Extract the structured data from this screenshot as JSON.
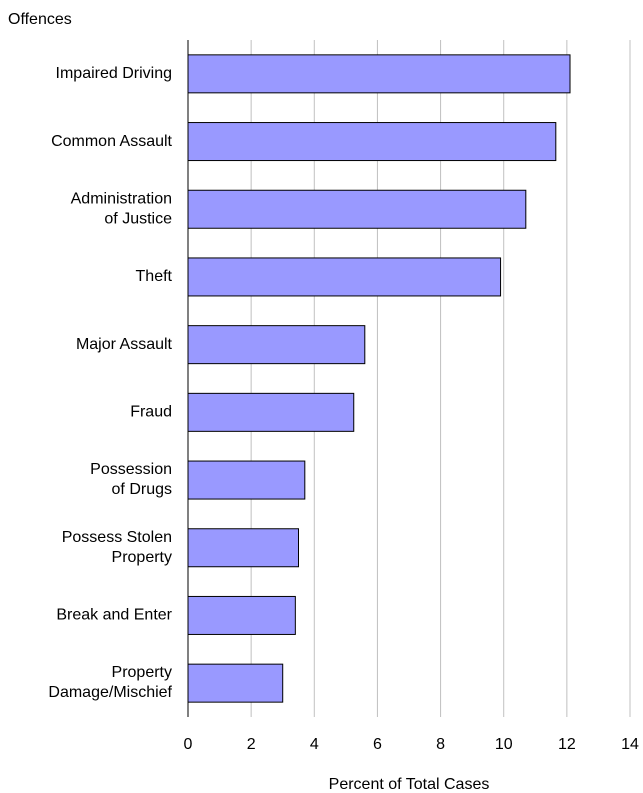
{
  "chart_data": {
    "type": "bar",
    "orientation": "horizontal",
    "y_axis_title": "Offences",
    "x_axis_title": "Percent of Total Cases",
    "categories": [
      "Impaired Driving",
      "Common Assault",
      "Administration\nof Justice",
      "Theft",
      "Major Assault",
      "Fraud",
      "Possession\nof Drugs",
      "Possess Stolen\nProperty",
      "Break and Enter",
      "Property\nDamage/Mischief"
    ],
    "values": [
      12.1,
      11.65,
      10.7,
      9.9,
      5.6,
      5.25,
      3.7,
      3.5,
      3.4,
      3.0
    ],
    "color": "#9999ff",
    "xlim": [
      0,
      14
    ],
    "xticks": [
      0,
      2,
      4,
      6,
      8,
      10,
      12,
      14
    ],
    "grid": true
  }
}
